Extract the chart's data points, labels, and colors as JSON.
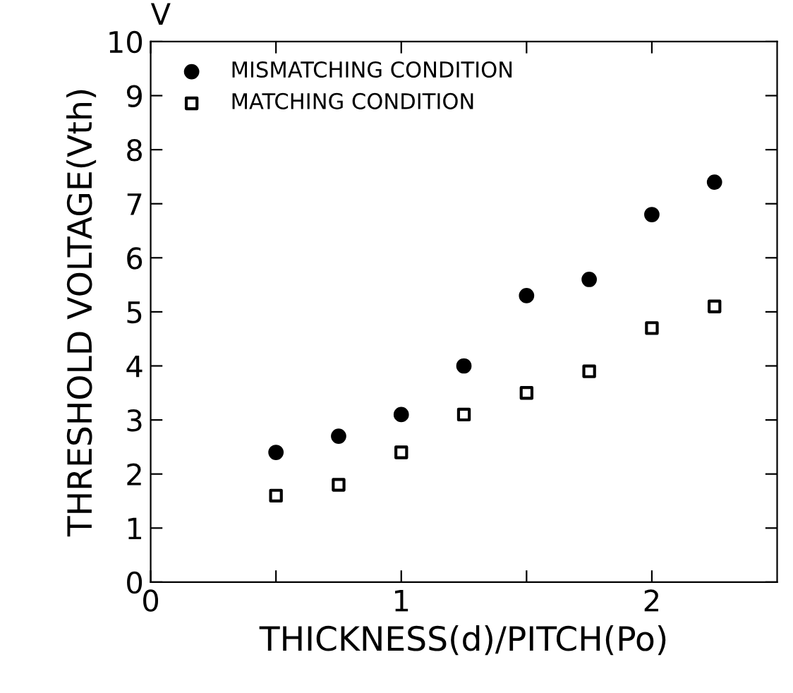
{
  "chart_data": {
    "type": "scatter",
    "xlabel": "THICKNESS(d)/PITCH(Po)",
    "ylabel": "THRESHOLD VOLTAGE(Vth)",
    "annotations": [
      "V"
    ],
    "x": [
      0.5,
      0.75,
      1.0,
      1.25,
      1.5,
      1.75,
      2.0,
      2.25
    ],
    "series": [
      {
        "name": "MISMATCHING CONDITION",
        "color": "#000000",
        "marker": "circle",
        "values": [
          2.4,
          2.7,
          3.1,
          4.0,
          5.3,
          5.6,
          6.8,
          7.4
        ]
      },
      {
        "name": "MATCHING CONDITION",
        "color": "#000000",
        "marker": "square",
        "values": [
          1.6,
          1.8,
          2.4,
          3.1,
          3.5,
          3.9,
          4.7,
          5.1
        ]
      }
    ],
    "xlim": [
      0,
      2.5
    ],
    "xticks": [
      0,
      {
        "value": 0.5,
        "label": null
      },
      1,
      {
        "value": 1.5,
        "label": null
      },
      2
    ],
    "ylim": [
      0,
      10
    ],
    "yticks": [
      0,
      1,
      2,
      3,
      4,
      5,
      6,
      7,
      8,
      9,
      10
    ],
    "grid": false,
    "legend": "top left"
  }
}
